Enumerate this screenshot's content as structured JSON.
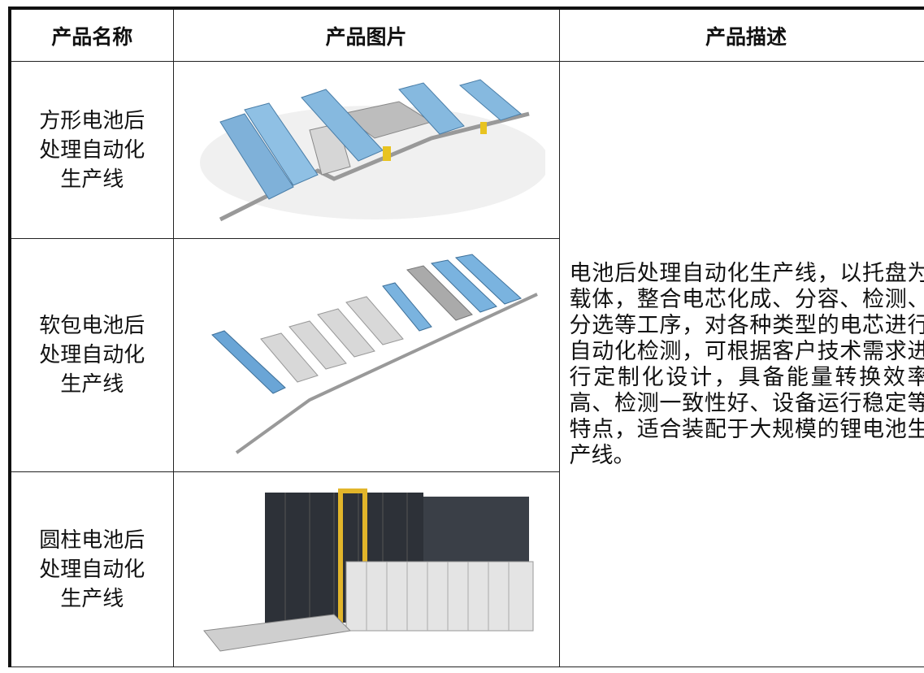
{
  "table": {
    "headers": [
      "产品名称",
      "产品图片",
      "产品描述"
    ],
    "rows": [
      {
        "name": "方形电池后处理自动化生产线"
      },
      {
        "name": "软包电池后处理自动化生产线"
      },
      {
        "name": "圆柱电池后处理自动化生产线"
      }
    ],
    "description": "电池后处理自动化生产线，以托盘为载体，整合电芯化成、分容、检测、分选等工序，对各种类型的电芯进行自动化检测，可根据客户技术需求进行定制化设计，具备能量转换效率高、检测一致性好、设备运行稳定等特点，适合装配于大规模的锂电池生产线。"
  }
}
